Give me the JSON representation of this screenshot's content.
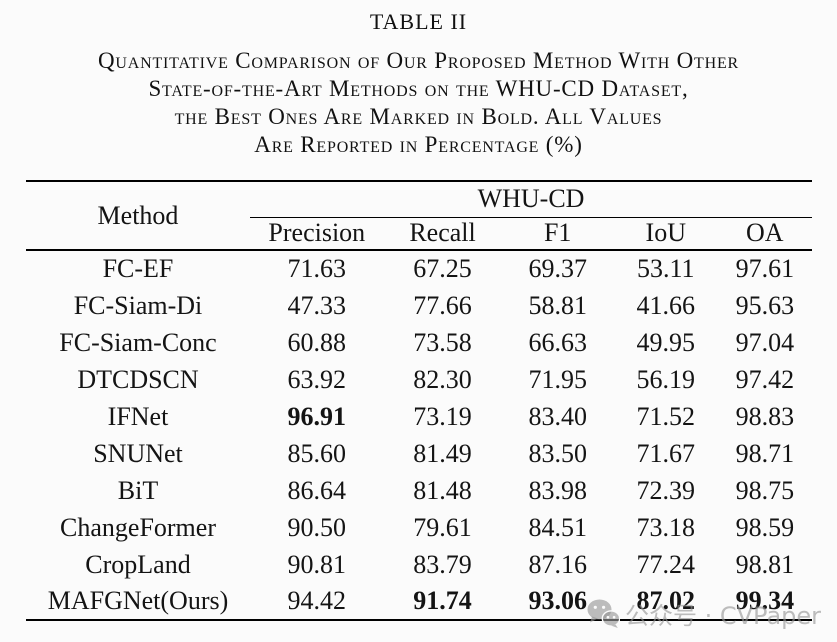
{
  "title": "TABLE II",
  "caption_lines": [
    "Quantitative Comparison of Our Proposed Method With Other",
    "State-of-the-Art Methods on the WHU-CD Dataset,",
    "the Best Ones Are Marked in Bold. All Values",
    "Are Reported in Percentage (%)"
  ],
  "table": {
    "method_header": "Method",
    "group_header": "WHU-CD",
    "metric_headers": [
      "Precision",
      "Recall",
      "F1",
      "IoU",
      "OA"
    ],
    "rows": [
      {
        "method": "FC-EF",
        "values": [
          "71.63",
          "67.25",
          "69.37",
          "53.11",
          "97.61"
        ],
        "bold": []
      },
      {
        "method": "FC-Siam-Di",
        "values": [
          "47.33",
          "77.66",
          "58.81",
          "41.66",
          "95.63"
        ],
        "bold": []
      },
      {
        "method": "FC-Siam-Conc",
        "values": [
          "60.88",
          "73.58",
          "66.63",
          "49.95",
          "97.04"
        ],
        "bold": []
      },
      {
        "method": "DTCDSCN",
        "values": [
          "63.92",
          "82.30",
          "71.95",
          "56.19",
          "97.42"
        ],
        "bold": []
      },
      {
        "method": "IFNet",
        "values": [
          "96.91",
          "73.19",
          "83.40",
          "71.52",
          "98.83"
        ],
        "bold": [
          0
        ]
      },
      {
        "method": "SNUNet",
        "values": [
          "85.60",
          "81.49",
          "83.50",
          "71.67",
          "98.71"
        ],
        "bold": []
      },
      {
        "method": "BiT",
        "values": [
          "86.64",
          "81.48",
          "83.98",
          "72.39",
          "98.75"
        ],
        "bold": []
      },
      {
        "method": "ChangeFormer",
        "values": [
          "90.50",
          "79.61",
          "84.51",
          "73.18",
          "98.59"
        ],
        "bold": []
      },
      {
        "method": "CropLand",
        "values": [
          "90.81",
          "83.79",
          "87.16",
          "77.24",
          "98.81"
        ],
        "bold": []
      },
      {
        "method": "MAFGNet(Ours)",
        "values": [
          "94.42",
          "91.74",
          "93.06",
          "87.02",
          "99.34"
        ],
        "bold": [
          1,
          2,
          3,
          4
        ]
      }
    ]
  },
  "watermark": {
    "icon": "wechat-icon",
    "text": "公众号 · CVPaper"
  },
  "colors": {
    "background": "#fbfbfb",
    "text": "#141414",
    "rule": "#000000",
    "watermark_gray": "#949494"
  }
}
